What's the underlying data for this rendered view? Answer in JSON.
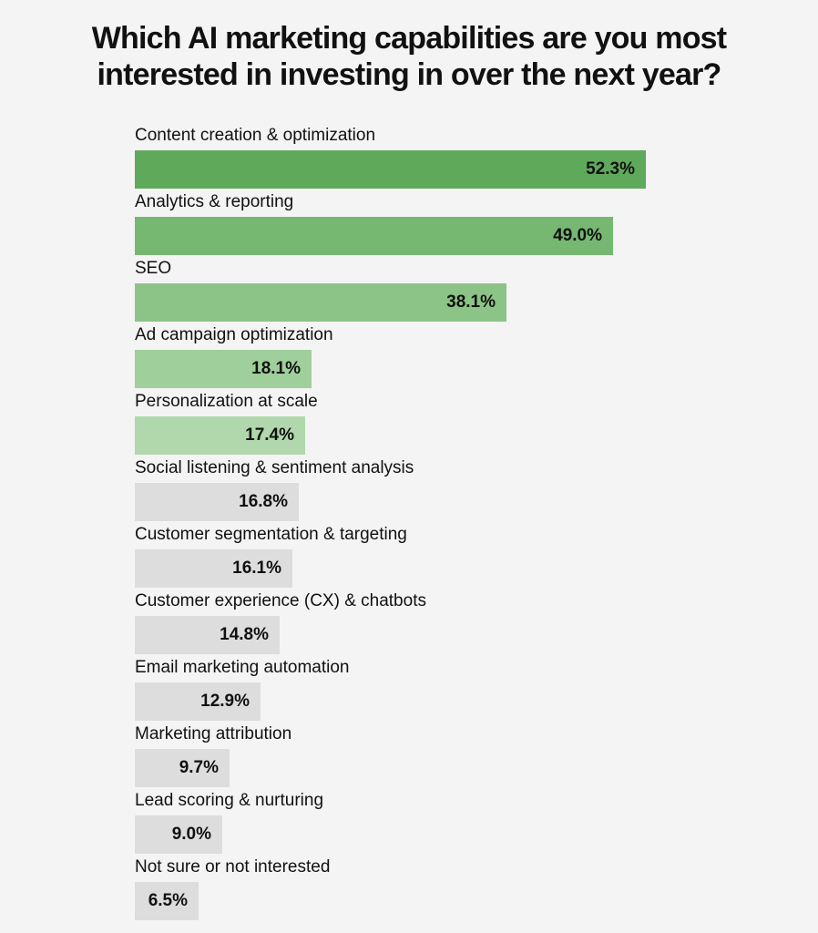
{
  "title_lines": [
    "Which AI marketing capabilities are you most",
    "interested in investing in over the next year?"
  ],
  "colors": {
    "background": "#f4f4f4",
    "text": "#111111",
    "non_green_bar": "#dddddd"
  },
  "chart_data": {
    "type": "bar",
    "orientation": "horizontal",
    "title": "Which AI marketing capabilities are you most interested in investing in over the next year?",
    "unit": "%",
    "xlim": [
      0,
      60
    ],
    "grid": false,
    "legend": "none",
    "categories": [
      "Content creation & optimization",
      "Analytics & reporting",
      "SEO",
      "Ad campaign optimization",
      "Personalization at scale",
      "Social listening & sentiment analysis",
      "Customer segmentation & targeting",
      "Customer experience (CX) & chatbots",
      "Email marketing automation",
      "Marketing attribution",
      "Lead scoring & nurturing",
      "Not sure or not interested"
    ],
    "values": [
      52.3,
      49.0,
      38.1,
      18.1,
      17.4,
      16.8,
      16.1,
      14.8,
      12.9,
      9.7,
      9.0,
      6.5
    ],
    "value_labels": [
      "52.3%",
      "49.0%",
      "38.1%",
      "18.1%",
      "17.4%",
      "16.8%",
      "16.1%",
      "14.8%",
      "12.9%",
      "9.7%",
      "9.0%",
      "6.5%"
    ],
    "bar_colors": [
      "#5fa95a",
      "#76b872",
      "#8cc487",
      "#9fcf9a",
      "#b1d8ac",
      "#dddddd",
      "#dddddd",
      "#dddddd",
      "#dddddd",
      "#dddddd",
      "#dddddd",
      "#dddddd"
    ]
  }
}
